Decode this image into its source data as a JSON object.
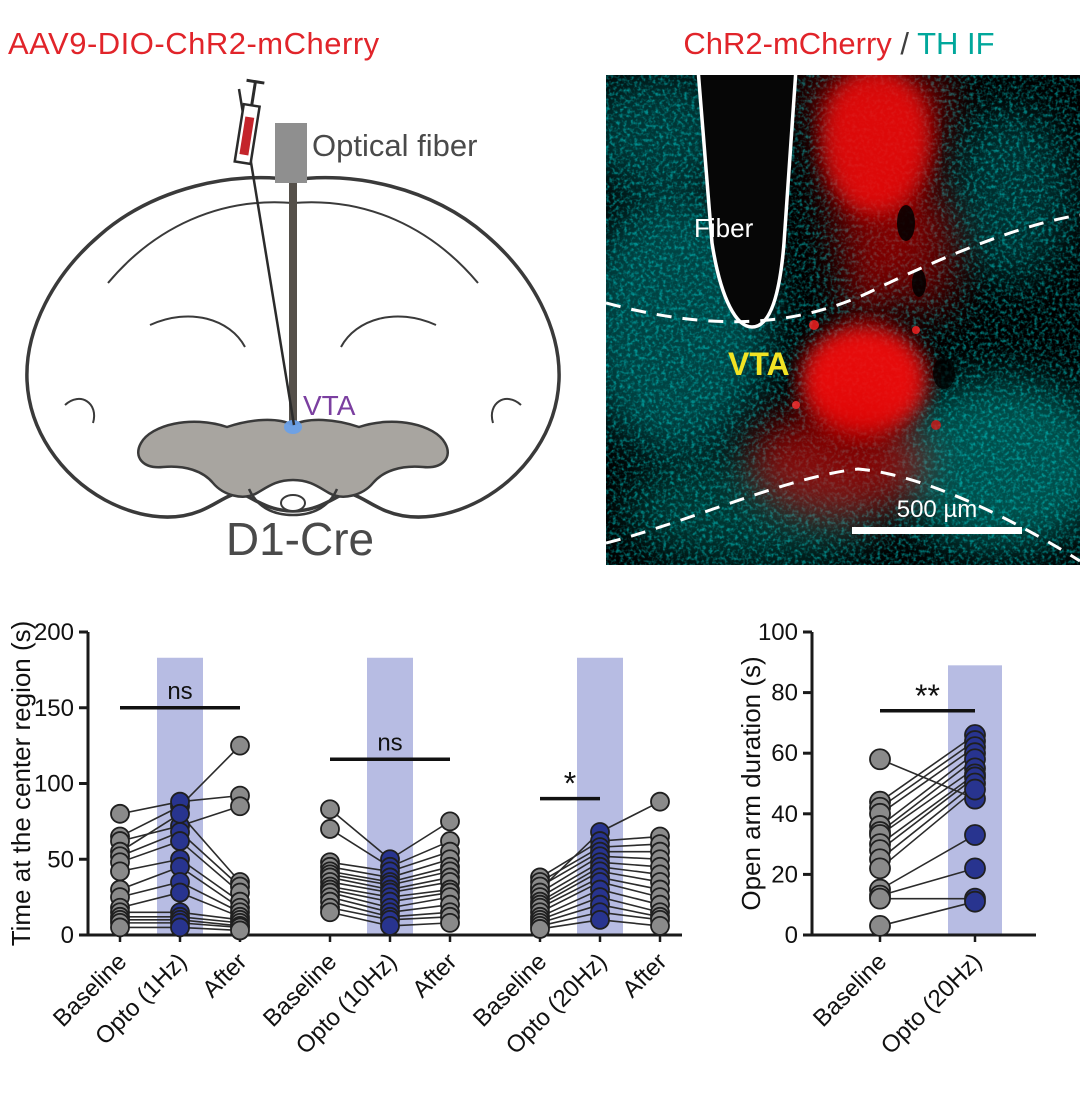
{
  "schematic": {
    "title": "AAV9-DIO-ChR2-mCherry",
    "optical_fiber_label": "Optical fiber",
    "vta_label": "VTA",
    "mouse_line_label": "D1-Cre",
    "colors": {
      "title": "#e1242a",
      "vta": "#7b3fa0",
      "text": "#4a4a4a"
    }
  },
  "microscopy": {
    "title_red": "ChR2-mCherry",
    "title_separator": " / ",
    "title_teal": "TH IF",
    "fiber_label": "Fiber",
    "vta_label": "VTA",
    "scale_bar_label": "500 µm",
    "colors": {
      "red": "#e1242a",
      "teal": "#00a79b",
      "vta_text": "#f2e324"
    }
  },
  "chart_data": [
    {
      "type": "paired-scatter",
      "ylabel": "Time at the center region (s)",
      "ylim": [
        0,
        200
      ],
      "yticks": [
        0,
        50,
        100,
        150,
        200
      ],
      "band_top": 183,
      "colors": {
        "control": "#8a8a8a",
        "opto": "#28348f",
        "band": "#b7bce3",
        "line": "#2b2b2b"
      },
      "groups": [
        {
          "categories": [
            "Baseline",
            "Opto (1Hz)",
            "After"
          ],
          "opto_index": 1,
          "values": [
            [
              65,
              85,
              125
            ],
            [
              80,
              88,
              92
            ],
            [
              62,
              72,
              85
            ],
            [
              55,
              80,
              35
            ],
            [
              52,
              68,
              32
            ],
            [
              48,
              62,
              28
            ],
            [
              42,
              50,
              22
            ],
            [
              30,
              45,
              18
            ],
            [
              25,
              35,
              15
            ],
            [
              18,
              28,
              12
            ],
            [
              15,
              15,
              10
            ],
            [
              12,
              12,
              8
            ],
            [
              10,
              10,
              6
            ],
            [
              8,
              8,
              5
            ],
            [
              5,
              5,
              3
            ]
          ],
          "significance": {
            "label": "ns",
            "y": 150,
            "from": 0,
            "to": 2
          }
        },
        {
          "categories": [
            "Baseline",
            "Opto (10Hz)",
            "After"
          ],
          "opto_index": 1,
          "values": [
            [
              83,
              50,
              75
            ],
            [
              70,
              45,
              62
            ],
            [
              48,
              42,
              55
            ],
            [
              45,
              38,
              50
            ],
            [
              42,
              35,
              45
            ],
            [
              40,
              33,
              42
            ],
            [
              38,
              30,
              38
            ],
            [
              35,
              28,
              35
            ],
            [
              32,
              25,
              30
            ],
            [
              30,
              22,
              28
            ],
            [
              28,
              18,
              25
            ],
            [
              25,
              15,
              20
            ],
            [
              22,
              12,
              15
            ],
            [
              18,
              10,
              12
            ],
            [
              15,
              6,
              8
            ]
          ],
          "significance": {
            "label": "ns",
            "y": 116,
            "from": 0,
            "to": 2
          }
        },
        {
          "categories": [
            "Baseline",
            "Opto (20Hz)",
            "After"
          ],
          "opto_index": 1,
          "values": [
            [
              30,
              68,
              88
            ],
            [
              38,
              62,
              65
            ],
            [
              35,
              58,
              60
            ],
            [
              32,
              55,
              55
            ],
            [
              28,
              52,
              50
            ],
            [
              25,
              48,
              45
            ],
            [
              22,
              45,
              40
            ],
            [
              20,
              42,
              35
            ],
            [
              18,
              38,
              30
            ],
            [
              15,
              35,
              25
            ],
            [
              12,
              30,
              20
            ],
            [
              10,
              25,
              15
            ],
            [
              8,
              20,
              12
            ],
            [
              6,
              15,
              10
            ],
            [
              4,
              10,
              6
            ]
          ],
          "significance": {
            "label": "*",
            "y": 90,
            "from": 0,
            "to": 1
          }
        }
      ]
    },
    {
      "type": "paired-scatter",
      "ylabel": "Open arm duration (s)",
      "ylim": [
        0,
        100
      ],
      "yticks": [
        0,
        20,
        40,
        60,
        80,
        100
      ],
      "band_top": 89,
      "colors": {
        "control": "#8a8a8a",
        "opto": "#28348f",
        "band": "#b7bce3",
        "line": "#2b2b2b"
      },
      "groups": [
        {
          "categories": [
            "Baseline",
            "Opto (20Hz)"
          ],
          "opto_index": 1,
          "values": [
            [
              58,
              45
            ],
            [
              44,
              66
            ],
            [
              42,
              64
            ],
            [
              40,
              62
            ],
            [
              36,
              60
            ],
            [
              34,
              58
            ],
            [
              33,
              55
            ],
            [
              30,
              53
            ],
            [
              28,
              52
            ],
            [
              25,
              50
            ],
            [
              22,
              48
            ],
            [
              15,
              33
            ],
            [
              13,
              22
            ],
            [
              12,
              12
            ],
            [
              3,
              11
            ]
          ],
          "significance": {
            "label": "**",
            "y": 74,
            "from": 0,
            "to": 1
          }
        }
      ]
    }
  ]
}
